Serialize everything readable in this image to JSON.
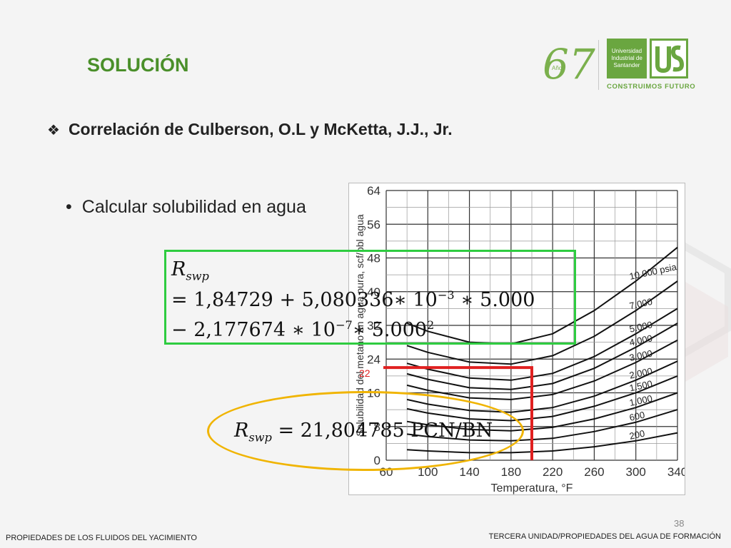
{
  "slide": {
    "title": "SOLUCIÓN",
    "heading_marker": "❖",
    "heading": "Correlación de Culberson, O.L y McKetta, J.J., Jr.",
    "bullet_marker": "•",
    "bullet": "Calcular solubilidad en agua",
    "page_number": "38",
    "footer_left": "PROPIEDADES DE LOS FLUIDOS DEL YACIMIENTO",
    "footer_right": "TERCERA UNIDAD/PROPIEDADES DEL AGUA DE FORMACIÓN",
    "marker_label": "22",
    "logo": {
      "anniversary": "67",
      "anniversary_small": "Años",
      "university_line1": "Universidad",
      "university_line2": "Industrial de",
      "university_line3": "Santander",
      "tagline": "CONSTRUIMOS FUTURO"
    }
  },
  "formula": {
    "symbol": "R",
    "subscript": "swp",
    "line2_prefix": "= 1,84729 + 5,080336∗ 10",
    "line2_exp": "−3",
    "line2_suffix": " ∗ 5.000",
    "line3_prefix": "− 2,177674  ∗ 10",
    "line3_exp": "−7",
    "line3_mid": "∗ 5.000",
    "line3_exp2": "2",
    "result_text": " = 21,804785 PCN/BN"
  },
  "colors": {
    "title_green": "#4a8f2a",
    "formula_border": "#2ecc40",
    "ellipse": "#f0b400",
    "highlight": "#e02020"
  },
  "chart_data": {
    "type": "line",
    "xlabel": "Temperatura, °F",
    "ylabel": "Solubilidad del metano en agua pura, scf/bbl agua",
    "xlim": [
      60,
      340
    ],
    "ylim": [
      0,
      64
    ],
    "xticks": [
      "60",
      "100",
      "140",
      "180",
      "220",
      "260",
      "300",
      "340"
    ],
    "yticks": [
      "0",
      "8",
      "16",
      "24",
      "32",
      "40",
      "48",
      "56",
      "64"
    ],
    "grid": true,
    "x": [
      80,
      100,
      140,
      180,
      220,
      260,
      300,
      340
    ],
    "series": [
      {
        "name": "200",
        "values": [
          2.5,
          2.2,
          1.8,
          1.8,
          2.2,
          3.2,
          4.6,
          6.5
        ]
      },
      {
        "name": "600",
        "values": [
          6.2,
          5.6,
          4.8,
          4.6,
          5.2,
          6.8,
          9.0,
          12.0
        ]
      },
      {
        "name": "1.000",
        "values": [
          9.2,
          8.4,
          7.3,
          7.0,
          7.8,
          9.8,
          12.5,
          16.0
        ]
      },
      {
        "name": "1.500",
        "values": [
          12.2,
          11.2,
          9.8,
          9.4,
          10.4,
          12.8,
          16.0,
          20.0
        ]
      },
      {
        "name": "2.000",
        "values": [
          14.4,
          13.3,
          11.8,
          11.4,
          12.5,
          15.2,
          19.0,
          23.5
        ]
      },
      {
        "name": "3.000",
        "values": [
          17.8,
          16.6,
          14.8,
          14.4,
          15.6,
          18.8,
          23.2,
          28.5
        ]
      },
      {
        "name": "4.000",
        "values": [
          20.5,
          19.2,
          17.2,
          16.8,
          18.2,
          21.8,
          26.8,
          32.5
        ]
      },
      {
        "name": "5.000",
        "values": [
          23.0,
          21.6,
          19.5,
          19.0,
          20.6,
          24.6,
          30.0,
          36.0
        ]
      },
      {
        "name": "7.000",
        "values": [
          27.2,
          25.6,
          23.3,
          22.8,
          24.8,
          29.4,
          35.5,
          42.5
        ]
      },
      {
        "name": "10.000 psia",
        "values": [
          32.5,
          30.6,
          28.0,
          27.6,
          30.0,
          35.5,
          42.5,
          50.5
        ]
      }
    ],
    "annotations": [
      {
        "text": "22",
        "x": 200,
        "y": 22
      }
    ]
  }
}
